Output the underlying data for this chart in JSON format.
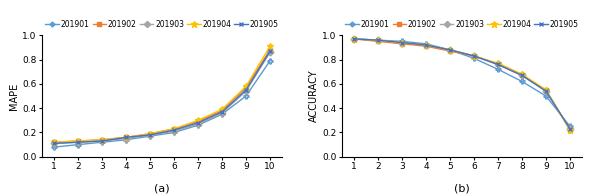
{
  "x": [
    1,
    2,
    3,
    4,
    5,
    6,
    7,
    8,
    9,
    10
  ],
  "mape": {
    "201901": [
      0.08,
      0.1,
      0.12,
      0.14,
      0.17,
      0.2,
      0.26,
      0.35,
      0.5,
      0.79
    ],
    "201902": [
      0.12,
      0.13,
      0.14,
      0.16,
      0.19,
      0.23,
      0.29,
      0.38,
      0.57,
      0.88
    ],
    "201903": [
      0.11,
      0.12,
      0.13,
      0.15,
      0.18,
      0.21,
      0.27,
      0.36,
      0.54,
      0.86
    ],
    "201904": [
      0.12,
      0.13,
      0.14,
      0.16,
      0.19,
      0.23,
      0.3,
      0.39,
      0.58,
      0.91
    ],
    "201905": [
      0.11,
      0.12,
      0.13,
      0.16,
      0.18,
      0.22,
      0.28,
      0.37,
      0.55,
      0.87
    ]
  },
  "accuracy": {
    "201901": [
      0.97,
      0.96,
      0.95,
      0.93,
      0.88,
      0.81,
      0.72,
      0.62,
      0.5,
      0.25
    ],
    "201902": [
      0.97,
      0.95,
      0.93,
      0.91,
      0.87,
      0.83,
      0.76,
      0.67,
      0.55,
      0.22
    ],
    "201903": [
      0.97,
      0.96,
      0.94,
      0.92,
      0.88,
      0.83,
      0.76,
      0.67,
      0.54,
      0.23
    ],
    "201904": [
      0.97,
      0.96,
      0.94,
      0.92,
      0.88,
      0.83,
      0.77,
      0.68,
      0.55,
      0.22
    ],
    "201905": [
      0.97,
      0.96,
      0.94,
      0.92,
      0.88,
      0.83,
      0.76,
      0.67,
      0.54,
      0.23
    ]
  },
  "colors": {
    "201901": "#5b9bd5",
    "201902": "#ed7d31",
    "201903": "#a5a5a5",
    "201904": "#ffc000",
    "201905": "#4472c4"
  },
  "markers": {
    "201901": "P",
    "201902": "s",
    "201903": "D",
    "201904": "*",
    "201905": "x"
  },
  "legend_labels": [
    "201901",
    "201902",
    "201903",
    "201904",
    "201905"
  ],
  "ylabel_left": "MAPE",
  "ylabel_right": "ACCURACY",
  "xlabel_left": "(a)",
  "xlabel_right": "(b)",
  "ylim_left": [
    0,
    1.0
  ],
  "ylim_right": [
    0,
    1.0
  ],
  "yticks_left": [
    0,
    0.2,
    0.4,
    0.6,
    0.8,
    1
  ],
  "yticks_right": [
    0,
    0.2,
    0.4,
    0.6,
    0.8,
    1
  ],
  "xticks": [
    1,
    2,
    3,
    4,
    5,
    6,
    7,
    8,
    9,
    10
  ],
  "figsize": [
    6.0,
    1.96
  ],
  "dpi": 100
}
